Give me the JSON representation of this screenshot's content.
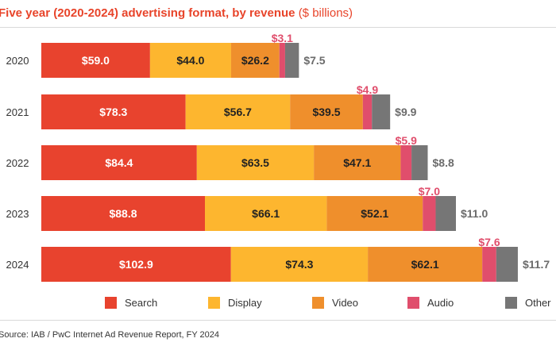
{
  "title": {
    "main": "Five year (2020-2024) advertising format, by revenue",
    "unit": "($ billions)"
  },
  "source": "Source: IAB / PwC Internet Ad Revenue Report, FY 2024",
  "legend": [
    {
      "name": "Search",
      "color": "#E8432E"
    },
    {
      "name": "Display",
      "color": "#FDB62F"
    },
    {
      "name": "Video",
      "color": "#EF8F2C"
    },
    {
      "name": "Audio",
      "color": "#E04E6C"
    },
    {
      "name": "Other",
      "color": "#767676"
    }
  ],
  "chart_data": {
    "type": "bar",
    "orientation": "horizontal",
    "stacked": true,
    "categories": [
      "2020",
      "2021",
      "2022",
      "2023",
      "2024"
    ],
    "series": [
      {
        "name": "Search",
        "values": [
          59.0,
          78.3,
          84.4,
          88.8,
          102.9
        ],
        "labels": [
          "$59.0",
          "$78.3",
          "$84.4",
          "$88.8",
          "$102.9"
        ]
      },
      {
        "name": "Display",
        "values": [
          44.0,
          56.7,
          63.5,
          66.1,
          74.3
        ],
        "labels": [
          "$44.0",
          "$56.7",
          "$63.5",
          "$66.1",
          "$74.3"
        ]
      },
      {
        "name": "Video",
        "values": [
          26.2,
          39.5,
          47.1,
          52.1,
          62.1
        ],
        "labels": [
          "$26.2",
          "$39.5",
          "$47.1",
          "$52.1",
          "$62.1"
        ]
      },
      {
        "name": "Audio",
        "values": [
          3.1,
          4.9,
          5.9,
          7.0,
          7.6
        ],
        "labels": [
          "$3.1",
          "$4.9",
          "$5.9",
          "$7.0",
          "$7.6"
        ]
      },
      {
        "name": "Other",
        "values": [
          7.5,
          9.9,
          8.8,
          11.0,
          11.7
        ],
        "labels": [
          "$7.5",
          "$9.9",
          "$8.8",
          "$11.0",
          "$11.7"
        ]
      }
    ],
    "colors": {
      "Search": "#E8432E",
      "Display": "#FDB62F",
      "Video": "#EF8F2C",
      "Audio": "#E04E6C",
      "Other": "#767676",
      "audio_label": "#E04E6C",
      "other_label": "#6b6b6b"
    }
  }
}
